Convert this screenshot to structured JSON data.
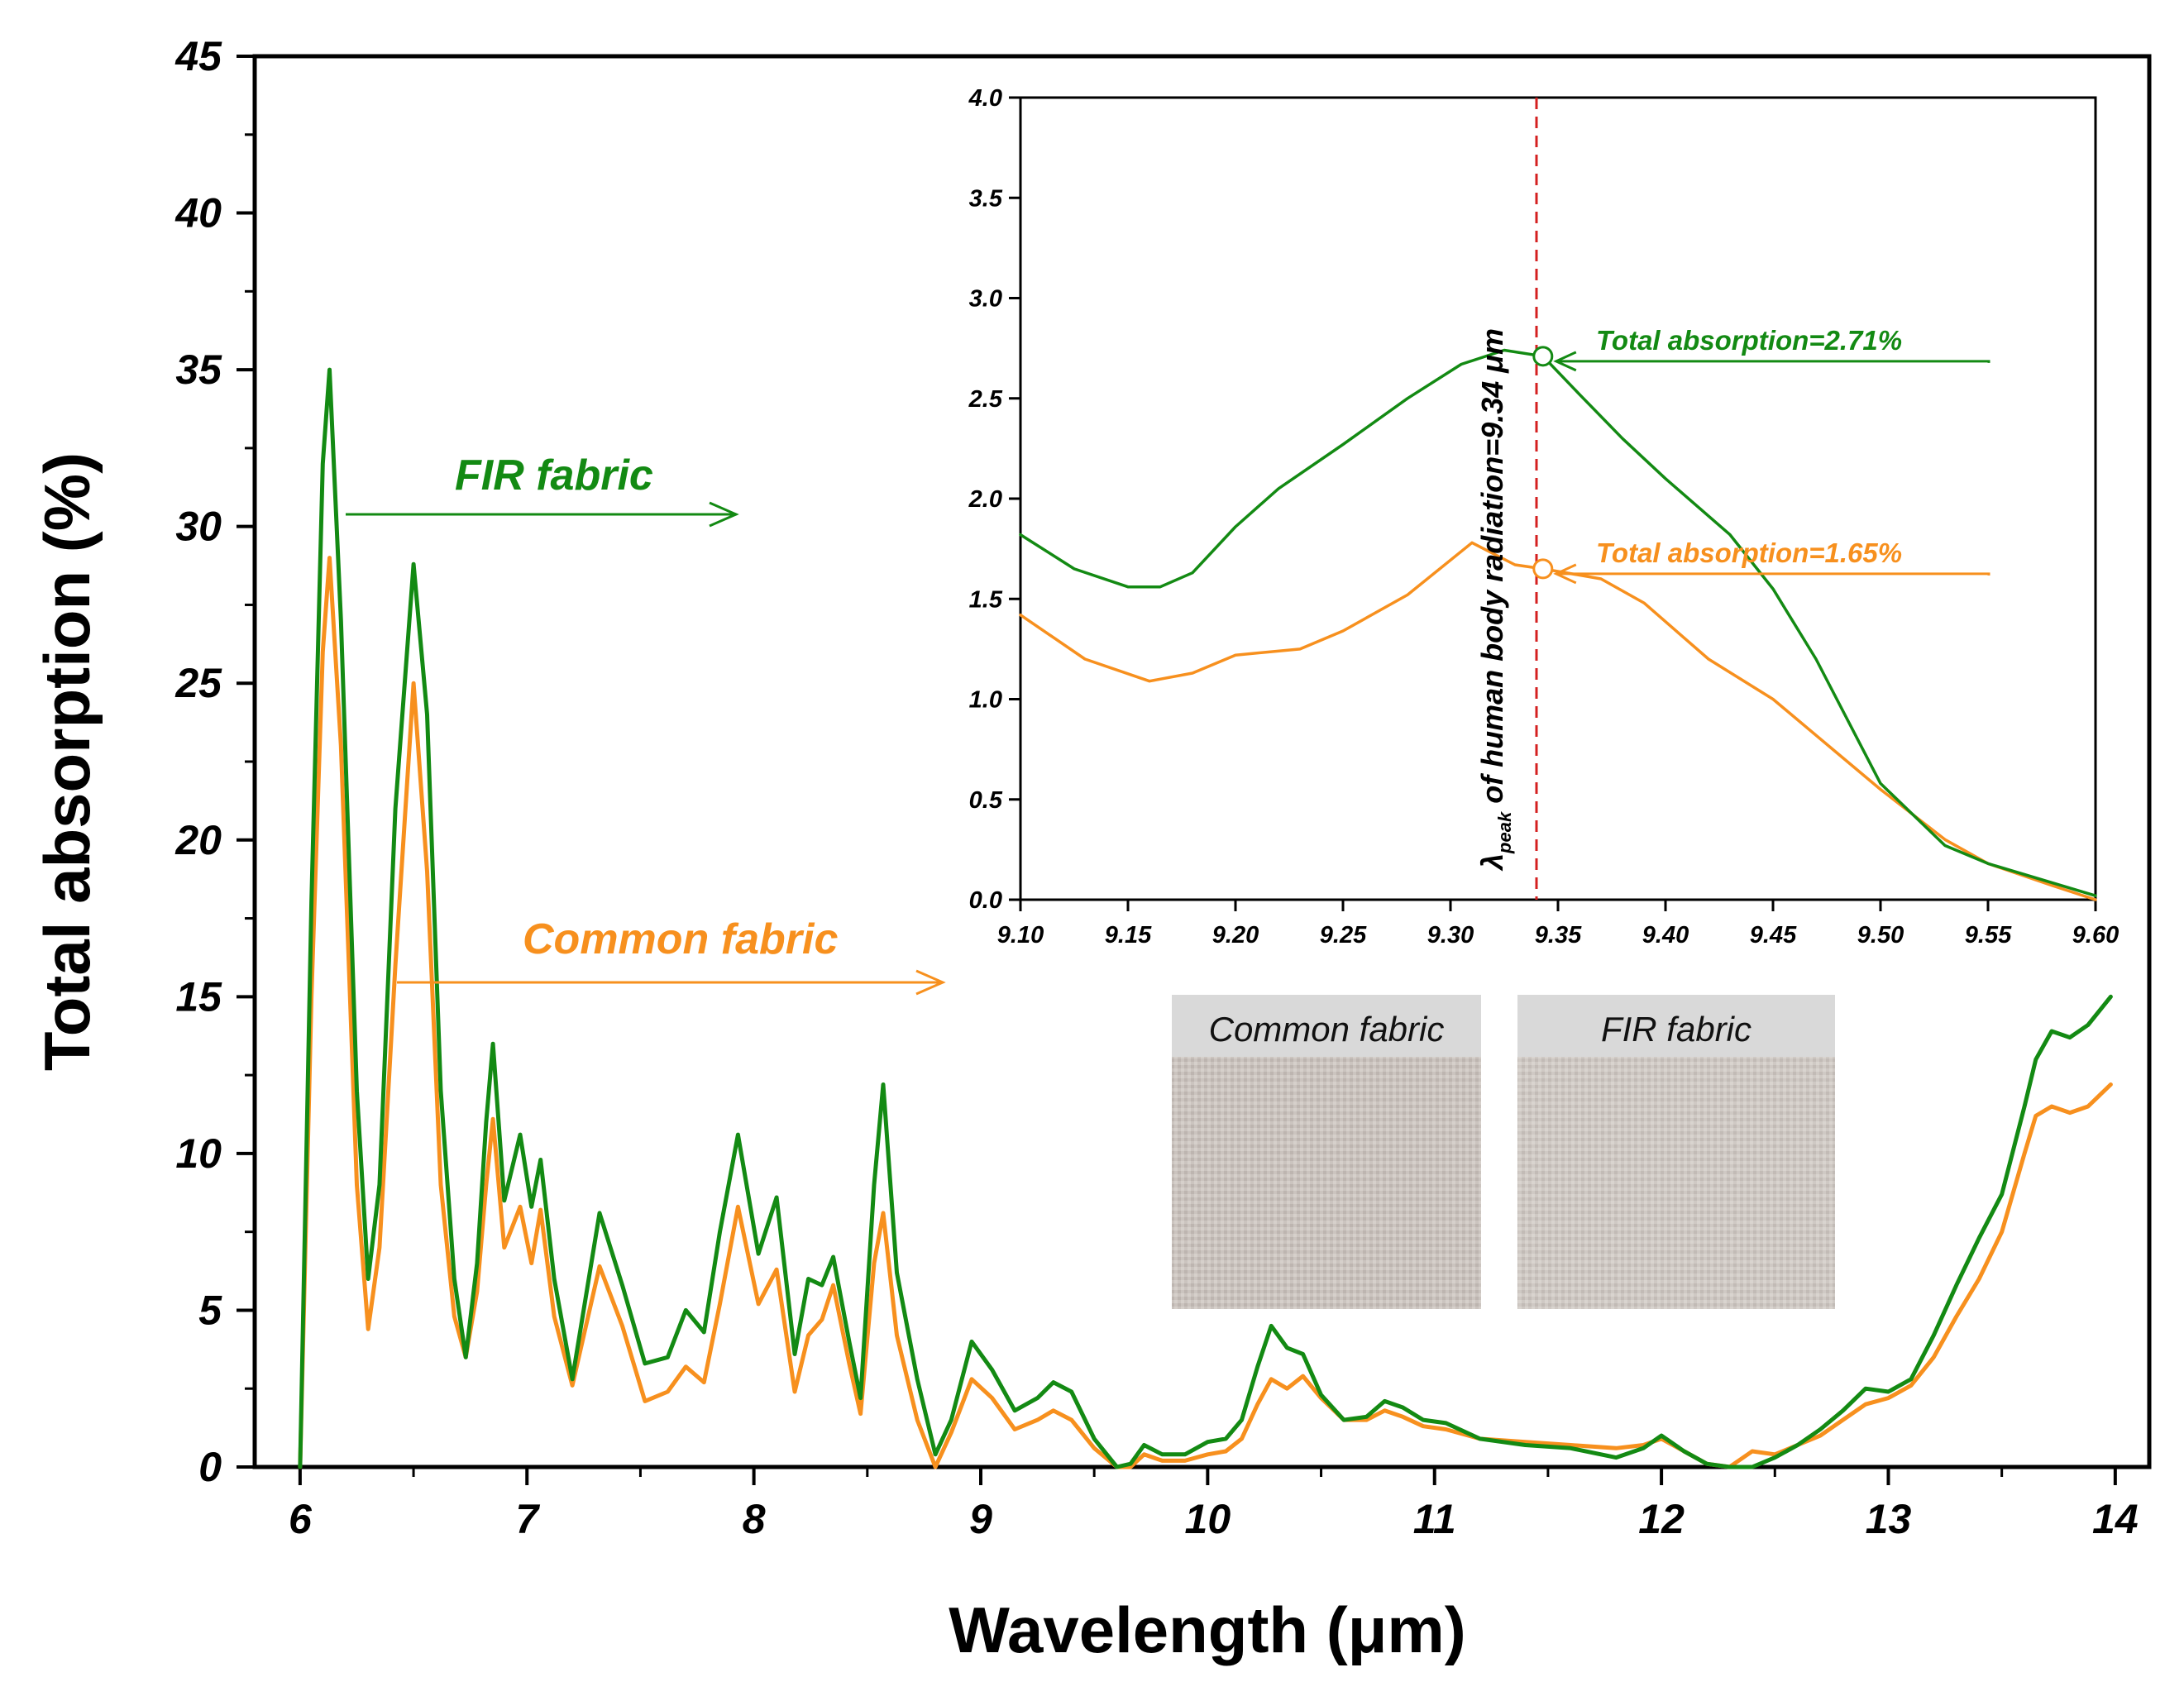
{
  "colors": {
    "fir": "#138a13",
    "common": "#f7901e",
    "peak_line": "#d42020",
    "photo_header": "#d9d9d9",
    "photo_fabric": "#c9c2bd"
  },
  "photos": {
    "common_label": "Common fabric",
    "fir_label": "FIR fabric"
  },
  "chart_data": [
    {
      "type": "line",
      "title": "",
      "xlabel": "Wavelength (μm)",
      "ylabel": "Total absorption (%)",
      "xlim": [
        5.8,
        14.15
      ],
      "ylim": [
        0,
        45
      ],
      "xticks": [
        "6",
        "7",
        "8",
        "9",
        "10",
        "11",
        "12",
        "13",
        "14"
      ],
      "yticks": [
        "0",
        "5",
        "10",
        "15",
        "20",
        "25",
        "30",
        "35",
        "40",
        "45"
      ],
      "series_labels": {
        "fir": "FIR fabric",
        "common": "Common fabric"
      },
      "series": [
        {
          "name": "FIR fabric",
          "key": "fir",
          "x": [
            6.0,
            6.05,
            6.1,
            6.13,
            6.18,
            6.25,
            6.3,
            6.35,
            6.42,
            6.5,
            6.56,
            6.62,
            6.68,
            6.73,
            6.78,
            6.82,
            6.85,
            6.9,
            6.97,
            7.02,
            7.06,
            7.12,
            7.2,
            7.32,
            7.42,
            7.52,
            7.62,
            7.7,
            7.78,
            7.85,
            7.93,
            8.02,
            8.1,
            8.18,
            8.24,
            8.3,
            8.35,
            8.42,
            8.47,
            8.53,
            8.57,
            8.63,
            8.72,
            8.8,
            8.87,
            8.96,
            9.05,
            9.15,
            9.25,
            9.32,
            9.4,
            9.5,
            9.6,
            9.66,
            9.72,
            9.8,
            9.9,
            10.0,
            10.08,
            10.15,
            10.22,
            10.28,
            10.35,
            10.42,
            10.5,
            10.6,
            10.7,
            10.78,
            10.86,
            10.95,
            11.05,
            11.2,
            11.4,
            11.6,
            11.8,
            11.92,
            12.0,
            12.1,
            12.2,
            12.3,
            12.4,
            12.5,
            12.6,
            12.7,
            12.8,
            12.9,
            13.0,
            13.1,
            13.2,
            13.3,
            13.4,
            13.5,
            13.6,
            13.65,
            13.72,
            13.8,
            13.88,
            13.98
          ],
          "y": [
            0,
            18,
            32,
            35,
            27,
            12,
            6,
            9,
            21,
            28.8,
            24,
            12,
            6,
            3.5,
            6.5,
            11,
            13.5,
            8.5,
            10.6,
            8.3,
            9.8,
            6,
            2.8,
            8.1,
            5.8,
            3.3,
            3.5,
            5,
            4.3,
            7.5,
            10.6,
            6.8,
            8.6,
            3.6,
            6,
            5.8,
            6.7,
            4,
            2.2,
            9,
            12.2,
            6.2,
            2.8,
            0.4,
            1.5,
            4,
            3.1,
            1.8,
            2.2,
            2.7,
            2.4,
            0.9,
            0,
            0.1,
            0.7,
            0.4,
            0.4,
            0.8,
            0.9,
            1.5,
            3.2,
            4.5,
            3.8,
            3.6,
            2.3,
            1.5,
            1.6,
            2.1,
            1.9,
            1.5,
            1.4,
            0.9,
            0.7,
            0.6,
            0.3,
            0.6,
            1.0,
            0.5,
            0.1,
            0,
            0,
            0.3,
            0.7,
            1.2,
            1.8,
            2.5,
            2.4,
            2.8,
            4.2,
            5.8,
            7.3,
            8.7,
            11.5,
            13,
            13.9,
            13.7,
            14.1,
            15
          ]
        },
        {
          "name": "Common fabric",
          "key": "common",
          "x": [
            6.0,
            6.05,
            6.1,
            6.13,
            6.18,
            6.25,
            6.3,
            6.35,
            6.42,
            6.5,
            6.56,
            6.62,
            6.68,
            6.73,
            6.78,
            6.82,
            6.85,
            6.9,
            6.97,
            7.02,
            7.06,
            7.12,
            7.2,
            7.32,
            7.42,
            7.52,
            7.62,
            7.7,
            7.78,
            7.85,
            7.93,
            8.02,
            8.1,
            8.18,
            8.24,
            8.3,
            8.35,
            8.42,
            8.47,
            8.53,
            8.57,
            8.63,
            8.72,
            8.8,
            8.87,
            8.96,
            9.05,
            9.15,
            9.25,
            9.32,
            9.4,
            9.5,
            9.6,
            9.66,
            9.72,
            9.8,
            9.9,
            10.0,
            10.08,
            10.15,
            10.22,
            10.28,
            10.35,
            10.42,
            10.5,
            10.6,
            10.7,
            10.78,
            10.86,
            10.95,
            11.05,
            11.2,
            11.4,
            11.6,
            11.8,
            11.92,
            12.0,
            12.1,
            12.2,
            12.3,
            12.4,
            12.5,
            12.6,
            12.7,
            12.8,
            12.9,
            13.0,
            13.1,
            13.2,
            13.3,
            13.4,
            13.5,
            13.6,
            13.65,
            13.72,
            13.8,
            13.88,
            13.98
          ],
          "y": [
            0,
            15,
            26,
            29,
            23,
            9,
            4.4,
            7,
            16,
            25,
            19,
            9,
            4.8,
            3.5,
            5.6,
            9,
            11.1,
            7,
            8.3,
            6.5,
            8.2,
            4.8,
            2.6,
            6.4,
            4.5,
            2.1,
            2.4,
            3.2,
            2.7,
            5.2,
            8.3,
            5.2,
            6.3,
            2.4,
            4.2,
            4.7,
            5.8,
            3.3,
            1.7,
            6.5,
            8.1,
            4.2,
            1.5,
            0,
            1.1,
            2.8,
            2.2,
            1.2,
            1.5,
            1.8,
            1.5,
            0.6,
            0,
            0,
            0.4,
            0.2,
            0.2,
            0.4,
            0.5,
            0.9,
            2.0,
            2.8,
            2.5,
            2.9,
            2.2,
            1.5,
            1.5,
            1.8,
            1.6,
            1.3,
            1.2,
            0.9,
            0.8,
            0.7,
            0.6,
            0.7,
            0.9,
            0.5,
            0.1,
            0,
            0.5,
            0.4,
            0.7,
            1.0,
            1.5,
            2.0,
            2.2,
            2.6,
            3.5,
            4.8,
            6.0,
            7.5,
            10.0,
            11.2,
            11.5,
            11.3,
            11.5,
            12.2
          ]
        }
      ]
    },
    {
      "type": "line",
      "title": "",
      "xlim": [
        9.1,
        9.6
      ],
      "ylim": [
        0,
        4.0
      ],
      "xticks": [
        "9.10",
        "9.15",
        "9.20",
        "9.25",
        "9.30",
        "9.35",
        "9.40",
        "9.45",
        "9.50",
        "9.55",
        "9.60"
      ],
      "yticks": [
        "0.0",
        "0.5",
        "1.0",
        "1.5",
        "2.0",
        "2.5",
        "3.0",
        "3.5",
        "4.0"
      ],
      "peak_wavelength": 9.34,
      "peak_label_lambda": "λ",
      "peak_label_sub": "peak",
      "peak_label_rest": " of human body radiation=9.34 μm",
      "annotations": [
        {
          "key": "fir",
          "text": "Total absorption=2.71%",
          "x": 9.343,
          "y": 2.71
        },
        {
          "key": "common",
          "text": "Total absorption=1.65%",
          "x": 9.343,
          "y": 1.65
        }
      ],
      "series": [
        {
          "name": "FIR fabric",
          "key": "fir",
          "x": [
            9.1,
            9.125,
            9.15,
            9.165,
            9.18,
            9.2,
            9.22,
            9.25,
            9.28,
            9.305,
            9.325,
            9.343,
            9.36,
            9.38,
            9.4,
            9.43,
            9.45,
            9.47,
            9.5,
            9.53,
            9.55,
            9.6
          ],
          "y": [
            1.82,
            1.65,
            1.56,
            1.56,
            1.63,
            1.86,
            2.05,
            2.27,
            2.5,
            2.67,
            2.74,
            2.71,
            2.52,
            2.3,
            2.1,
            1.82,
            1.55,
            1.2,
            0.58,
            0.27,
            0.18,
            0.02
          ]
        },
        {
          "name": "Common fabric",
          "key": "common",
          "x": [
            9.1,
            9.13,
            9.16,
            9.18,
            9.2,
            9.23,
            9.25,
            9.28,
            9.31,
            9.33,
            9.343,
            9.37,
            9.39,
            9.42,
            9.45,
            9.48,
            9.5,
            9.53,
            9.55,
            9.58,
            9.6
          ],
          "y": [
            1.42,
            1.2,
            1.09,
            1.13,
            1.22,
            1.25,
            1.34,
            1.52,
            1.78,
            1.67,
            1.65,
            1.6,
            1.48,
            1.2,
            1.0,
            0.73,
            0.55,
            0.3,
            0.18,
            0.07,
            0.0
          ]
        }
      ]
    }
  ]
}
